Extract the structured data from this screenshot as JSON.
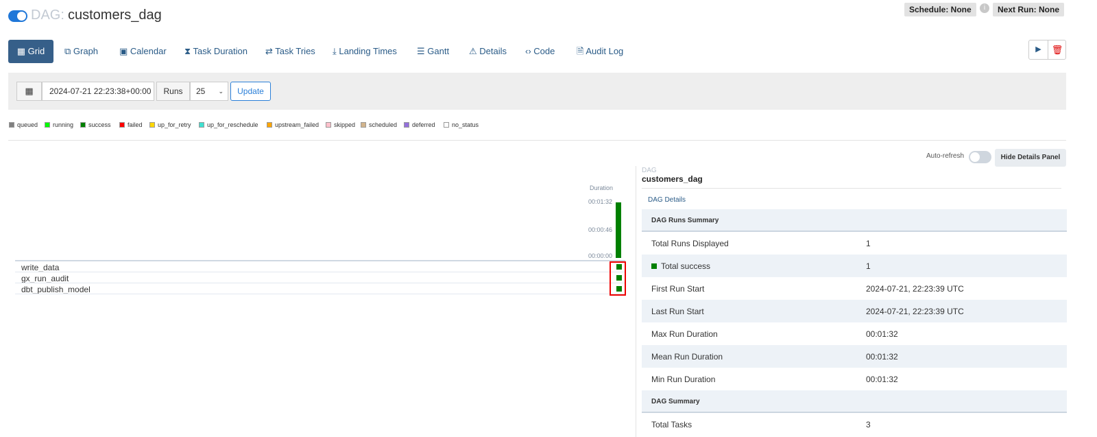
{
  "header": {
    "dag_label": "DAG:",
    "dag_id": "customers_dag",
    "schedule": "Schedule: None",
    "next_run": "Next Run: None"
  },
  "tabs": [
    "Grid",
    "Graph",
    "Calendar",
    "Task Duration",
    "Task Tries",
    "Landing Times",
    "Gantt",
    "Details",
    "Code",
    "Audit Log"
  ],
  "filter": {
    "date": "2024-07-21 22:23:38+00:00",
    "runs_label": "Runs",
    "runs_value": "25",
    "button": "Update"
  },
  "legend": [
    {
      "label": "queued",
      "color": "#808080"
    },
    {
      "label": "running",
      "color": "#00ff00"
    },
    {
      "label": "success",
      "color": "#008000"
    },
    {
      "label": "failed",
      "color": "#ff0000"
    },
    {
      "label": "up_for_retry",
      "color": "#ffd700"
    },
    {
      "label": "up_for_reschedule",
      "color": "#40e0d0"
    },
    {
      "label": "upstream_failed",
      "color": "#ffa500"
    },
    {
      "label": "skipped",
      "color": "#ffc0cb"
    },
    {
      "label": "scheduled",
      "color": "#d2b48c"
    },
    {
      "label": "deferred",
      "color": "#9370db"
    },
    {
      "label": "no_status",
      "color": "#ffffff"
    }
  ],
  "grid": {
    "duration_label": "Duration",
    "duration_ticks": [
      "00:01:32",
      "00:00:46",
      "00:00:00"
    ],
    "tasks": [
      "write_data",
      "gx_run_audit",
      "dbt_publish_model"
    ]
  },
  "controls": {
    "auto_refresh": "Auto-refresh",
    "hide_panel": "Hide Details Panel"
  },
  "details": {
    "kicker": "DAG",
    "dag_id": "customers_dag",
    "tab": "DAG Details",
    "sections": [
      {
        "title": "DAG Runs Summary",
        "rows": [
          [
            "Total Runs Displayed",
            "1"
          ],
          [
            "Total success",
            "1"
          ],
          [
            "First Run Start",
            "2024-07-21, 22:23:39 UTC"
          ],
          [
            "Last Run Start",
            "2024-07-21, 22:23:39 UTC"
          ],
          [
            "Max Run Duration",
            "00:01:32"
          ],
          [
            "Mean Run Duration",
            "00:01:32"
          ],
          [
            "Min Run Duration",
            "00:01:32"
          ]
        ]
      },
      {
        "title": "DAG Summary",
        "rows": [
          [
            "Total Tasks",
            "3"
          ]
        ]
      }
    ]
  }
}
